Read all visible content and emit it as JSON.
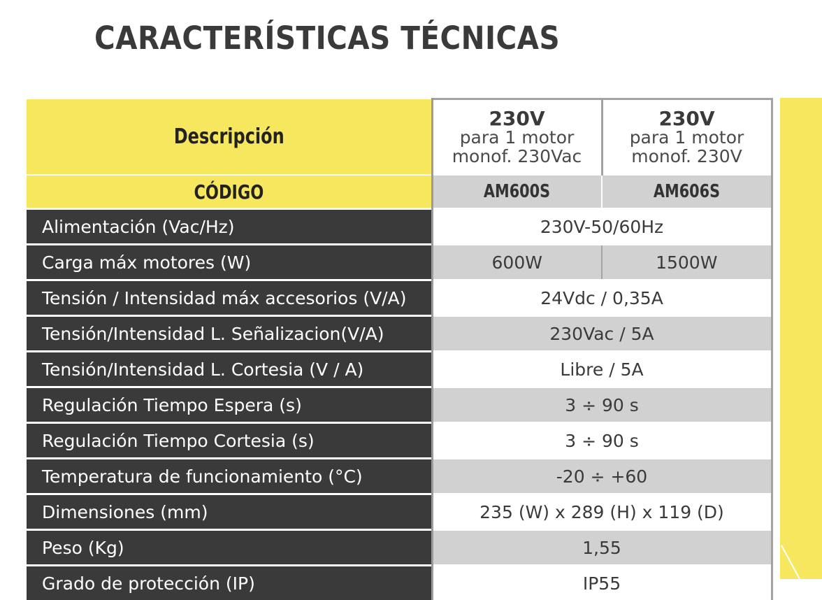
{
  "title": "CARACTERÍSTICAS TÉCNICAS",
  "colors": {
    "accent_yellow": "#f7e75f",
    "label_dark": "#3a3a3b",
    "row_gray": "#d1d1d1"
  },
  "table": {
    "header_description": "Descripción",
    "models": [
      {
        "voltage": "230V",
        "line1": "para 1 motor",
        "line2": "monof. 230Vac",
        "code": "AM600S"
      },
      {
        "voltage": "230V",
        "line1": "para 1 motor",
        "line2": "monof. 230V",
        "code": "AM606S"
      }
    ],
    "code_label": "CÓDIGO",
    "rows": [
      {
        "label": "Alimentación (Vac/Hz)",
        "value": "230V-50/60Hz"
      },
      {
        "label": "Carga máx motores (W)",
        "value_a": "600W",
        "value_b": "1500W"
      },
      {
        "label": "Tensión / Intensidad máx accesorios (V/A)",
        "value": "24Vdc /  0,35A"
      },
      {
        "label": "Tensión/Intensidad L. Señalizacion(V/A)",
        "value": "230Vac / 5A"
      },
      {
        "label": "Tensión/Intensidad L. Cortesia (V / A)",
        "value": "Libre / 5A"
      },
      {
        "label": "Regulación Tiempo Espera (s)",
        "value": "3 ÷ 90 s"
      },
      {
        "label": "Regulación Tiempo Cortesia (s)",
        "value": "3 ÷ 90 s"
      },
      {
        "label": "Temperatura de funcionamiento (°C)",
        "value": "-20 ÷ +60"
      },
      {
        "label": "Dimensiones (mm)",
        "value": "235 (W) x  289 (H) x 119 (D)"
      },
      {
        "label": "Peso (Kg)",
        "value": "1,55"
      },
      {
        "label": "Grado de protección  (IP)",
        "value": "IP55"
      }
    ]
  }
}
